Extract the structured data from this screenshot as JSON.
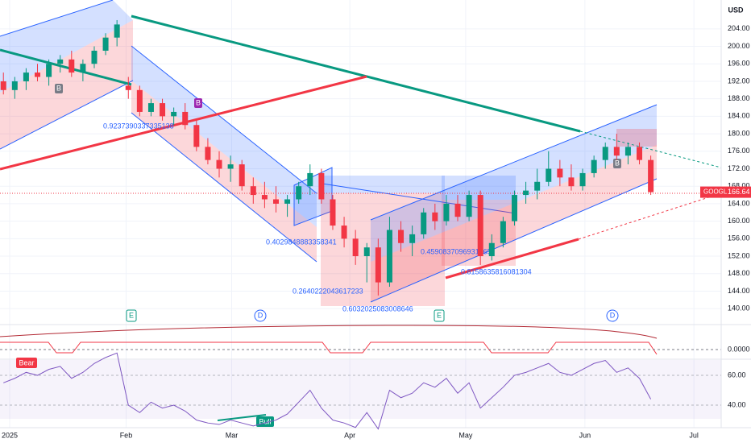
{
  "chart_data": {
    "type": "candlestick",
    "currency": "USD",
    "symbol": "GOOGL",
    "up_color": "#089981",
    "down_color": "#f23645",
    "xlim": [
      -0.3,
      63.2
    ],
    "xticks": [
      {
        "value": 0.55,
        "label": "2025"
      },
      {
        "value": 10.8,
        "label": "Feb"
      },
      {
        "value": 20.1,
        "label": "Mar"
      },
      {
        "value": 30.5,
        "label": "Apr"
      },
      {
        "value": 40.7,
        "label": "May"
      },
      {
        "value": 51.2,
        "label": "Jun"
      },
      {
        "value": 60.8,
        "label": "Jul"
      }
    ],
    "ylim": [
      136.9,
      210.6
    ],
    "yticks": [
      {
        "value": 140,
        "label": "140.00"
      },
      {
        "value": 144,
        "label": "144.00"
      },
      {
        "value": 148,
        "label": "148.00"
      },
      {
        "value": 152,
        "label": "152.00"
      },
      {
        "value": 156,
        "label": "156.00"
      },
      {
        "value": 160,
        "label": "160.00"
      },
      {
        "value": 164,
        "label": "164.00"
      },
      {
        "value": 168,
        "label": "168.00"
      },
      {
        "value": 172,
        "label": "172.00"
      },
      {
        "value": 176,
        "label": "176.00"
      },
      {
        "value": 180,
        "label": "180.00"
      },
      {
        "value": 184,
        "label": "184.00"
      },
      {
        "value": 188,
        "label": "188.00"
      },
      {
        "value": 192,
        "label": "192.00"
      },
      {
        "value": 196,
        "label": "196.00"
      },
      {
        "value": 200,
        "label": "200.00"
      },
      {
        "value": 204,
        "label": "204.00"
      }
    ],
    "candles": {
      "open": [
        192,
        190,
        192,
        194,
        193,
        196,
        197,
        194,
        196,
        199,
        202,
        191,
        190,
        185,
        187,
        184,
        185,
        182,
        177,
        174,
        172,
        173,
        168,
        166,
        165,
        164,
        165,
        168,
        171,
        165,
        159,
        156,
        152,
        154,
        146,
        158,
        155,
        157,
        162,
        160,
        164,
        161,
        166,
        152,
        155,
        160,
        166,
        167,
        169,
        172,
        170,
        168,
        171,
        174,
        177,
        175,
        177,
        174
      ],
      "high": [
        194,
        193,
        195,
        196,
        197,
        198,
        199,
        197,
        200,
        203,
        206,
        193,
        191,
        188,
        188,
        186,
        187,
        183,
        179,
        176,
        175,
        174,
        170,
        169,
        168,
        166,
        169,
        173,
        172,
        166,
        161,
        158,
        155,
        156,
        161,
        160,
        159,
        163,
        164,
        166,
        166,
        167,
        167,
        157,
        161,
        167,
        169,
        172,
        176,
        174,
        173,
        172,
        175,
        178,
        180,
        178,
        178,
        175
      ],
      "low": [
        189,
        188,
        190,
        192,
        191,
        194,
        193,
        192,
        195,
        198,
        200,
        188,
        184,
        184,
        183,
        182,
        181,
        176,
        173,
        170,
        169,
        167,
        164,
        163,
        162,
        161,
        164,
        166,
        164,
        158,
        154,
        150,
        146,
        143,
        145,
        153,
        152,
        156,
        158,
        159,
        160,
        160,
        150,
        151,
        154,
        159,
        164,
        165,
        168,
        168,
        167,
        167,
        170,
        172,
        174,
        173,
        173,
        166
      ],
      "close": [
        190,
        192,
        194,
        193,
        196,
        197,
        194,
        196,
        199,
        202,
        205,
        190,
        185,
        187,
        184,
        185,
        182,
        177,
        174,
        172,
        173,
        168,
        166,
        165,
        164,
        165,
        168,
        171,
        165,
        159,
        156,
        152,
        154,
        146,
        158,
        155,
        157,
        162,
        160,
        164,
        161,
        166,
        152,
        155,
        160,
        166,
        167,
        169,
        172,
        170,
        168,
        171,
        174,
        177,
        175,
        177,
        174,
        166.64
      ]
    },
    "annotations": [
      "0.9237390337335138",
      "0.4029848883358341",
      "0.2640222043617233",
      "0.6032025083008646",
      "0.4590837096931565",
      "0.8158635816081304"
    ],
    "markers": [
      "B",
      "B",
      "B"
    ],
    "events": [
      "E",
      "D",
      "E",
      "D"
    ],
    "oscillator_label": "0.0000",
    "rsi": {
      "color": "#7e57c2",
      "ylim": [
        25.4,
        70.3
      ],
      "yticks": [
        {
          "value": 60,
          "label": "60.00"
        },
        {
          "value": 40,
          "label": "40.00"
        }
      ],
      "values": [
        55,
        58,
        62,
        60,
        64,
        66,
        58,
        62,
        68,
        72,
        75,
        40,
        35,
        42,
        38,
        40,
        36,
        30,
        28,
        27,
        30,
        28,
        26,
        28,
        30,
        34,
        42,
        50,
        38,
        30,
        28,
        25,
        35,
        24,
        50,
        45,
        48,
        55,
        52,
        58,
        48,
        55,
        38,
        45,
        52,
        60,
        62,
        65,
        68,
        62,
        60,
        64,
        68,
        70,
        62,
        65,
        58,
        44
      ],
      "signals": [
        "Bear",
        "Bull"
      ]
    }
  }
}
